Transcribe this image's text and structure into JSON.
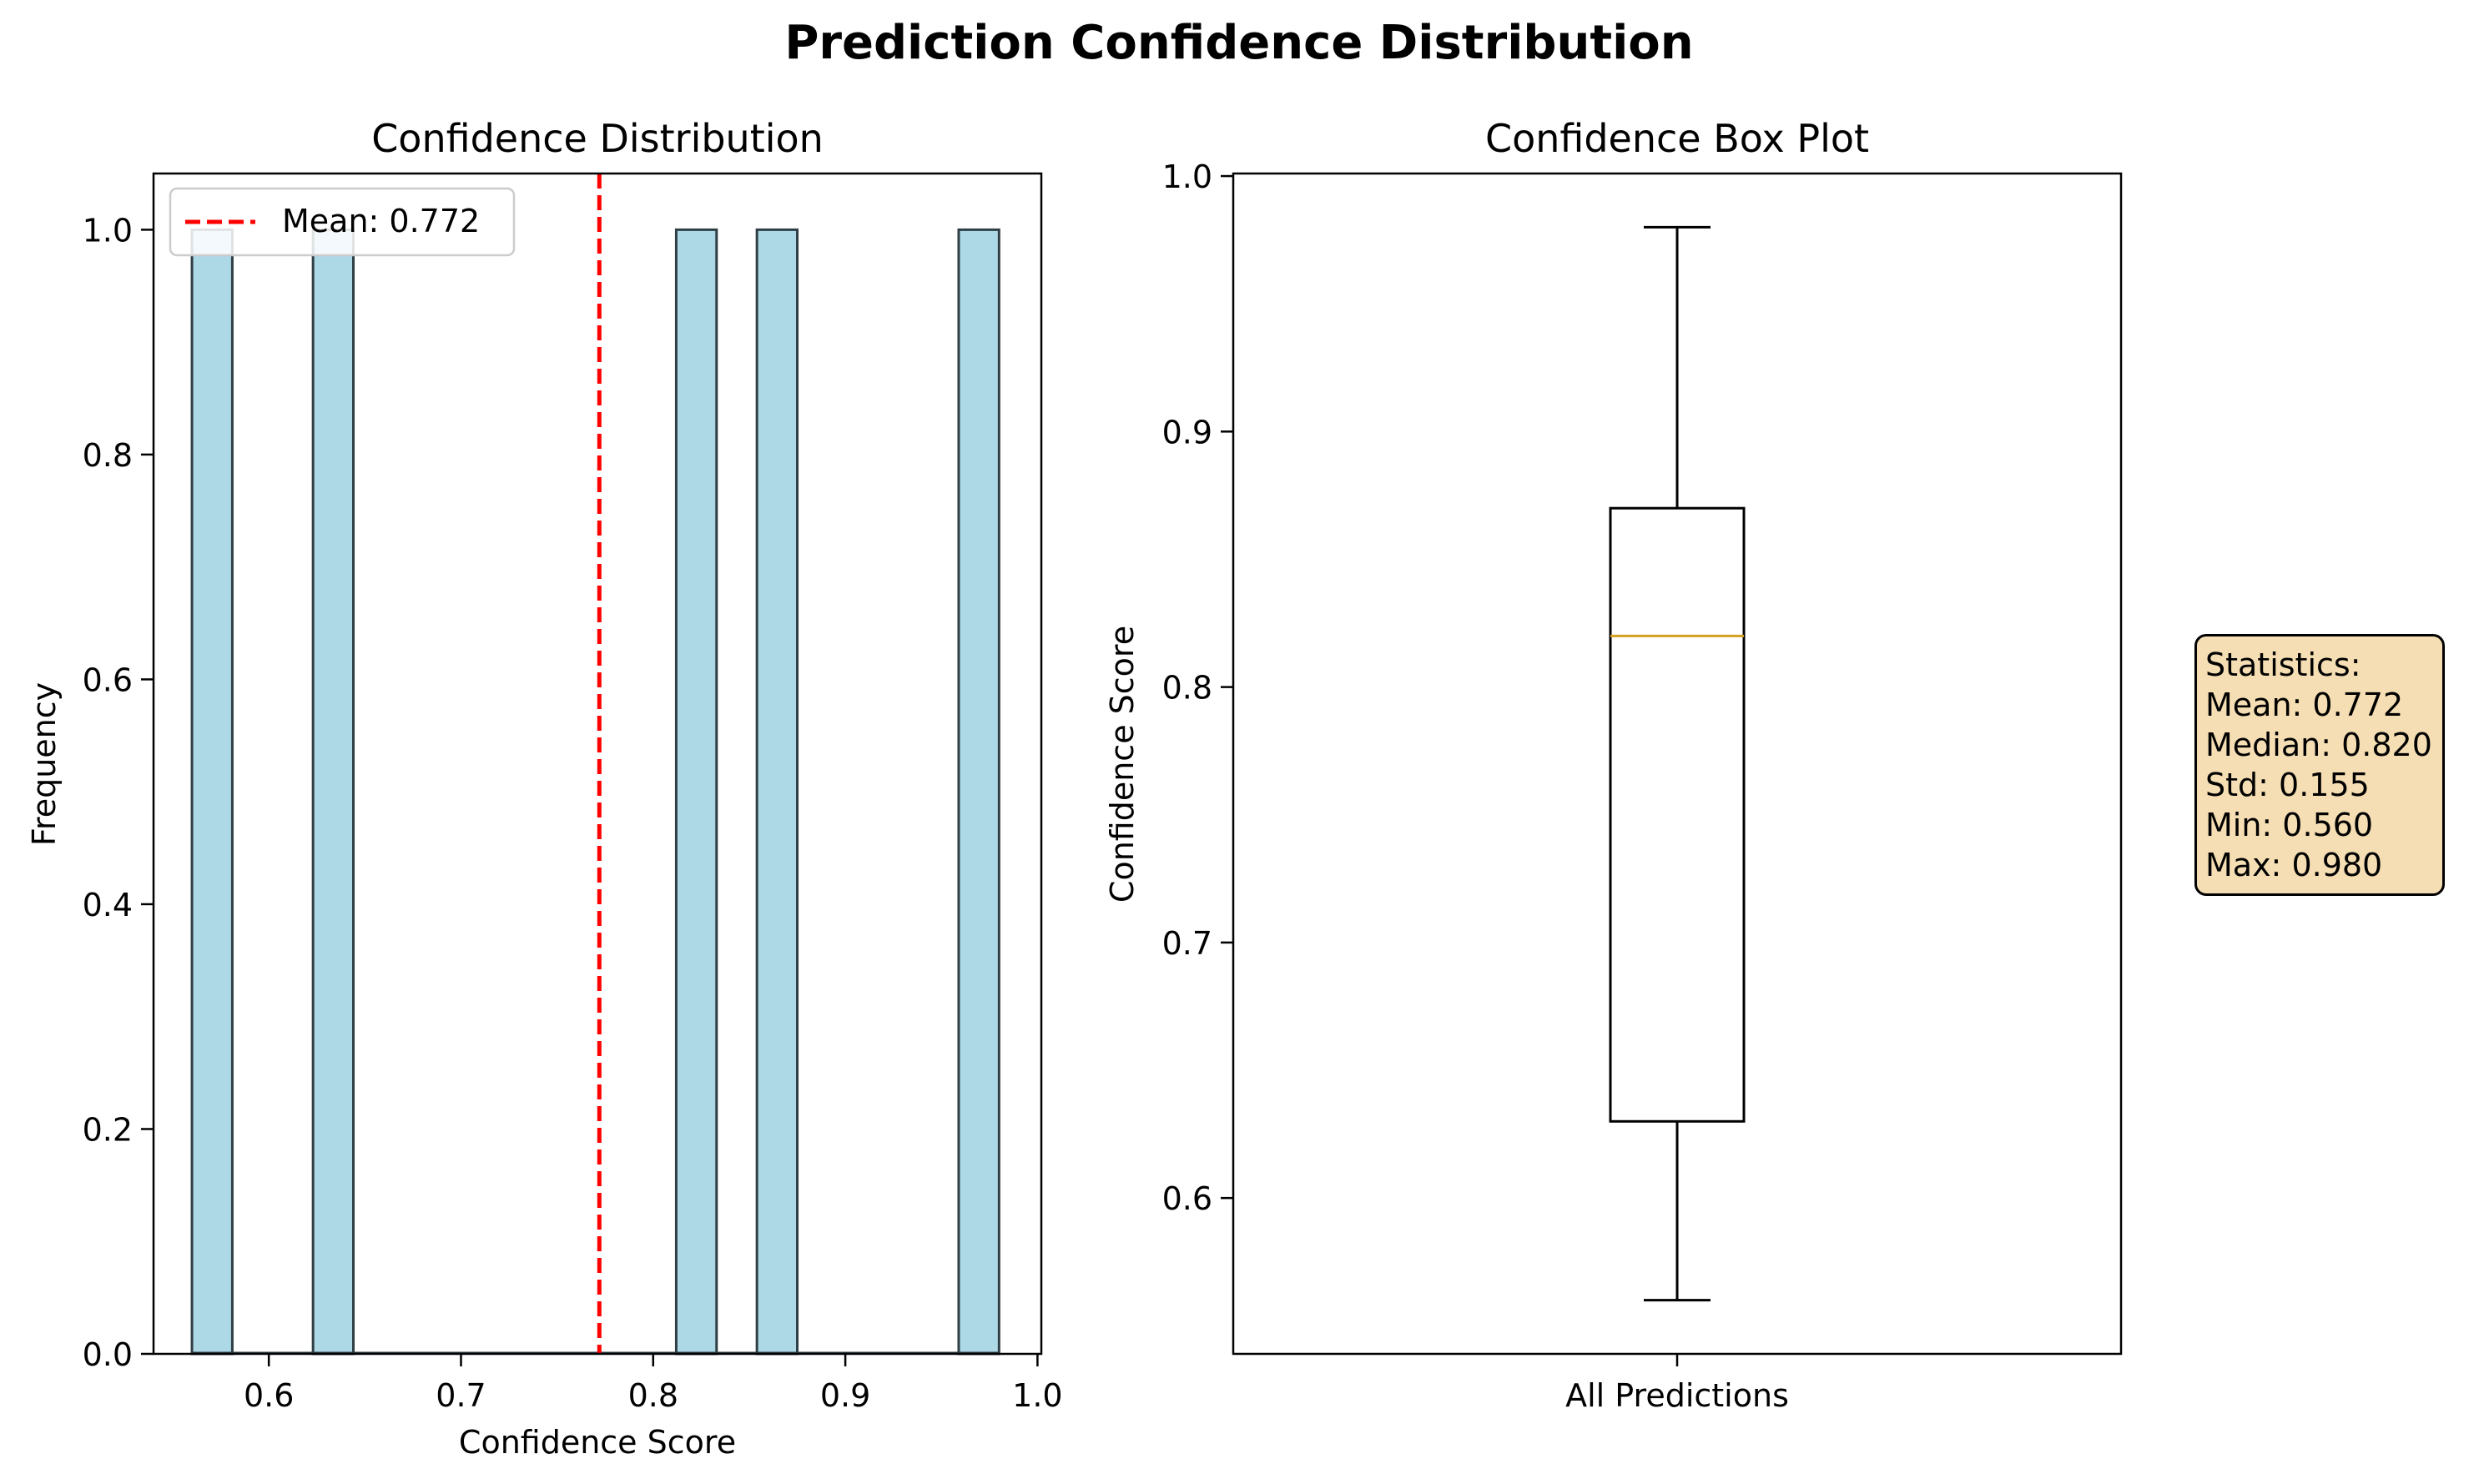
{
  "suptitle": "Prediction Confidence Distribution",
  "chart_data": [
    {
      "type": "bar",
      "title": "Confidence Distribution",
      "xlabel": "Confidence Score",
      "ylabel": "Frequency",
      "xlim": [
        0.54,
        1.002
      ],
      "ylim": [
        0,
        1.05
      ],
      "xticks": [
        "0.6",
        "0.7",
        "0.8",
        "0.9",
        "1.0"
      ],
      "yticks": [
        "0.0",
        "0.2",
        "0.4",
        "0.6",
        "0.8",
        "1.0"
      ],
      "bins": [
        {
          "start": 0.56,
          "end": 0.581,
          "count": 1
        },
        {
          "start": 0.623,
          "end": 0.644,
          "count": 1
        },
        {
          "start": 0.812,
          "end": 0.833,
          "count": 1
        },
        {
          "start": 0.854,
          "end": 0.875,
          "count": 1
        },
        {
          "start": 0.959,
          "end": 0.98,
          "count": 1
        }
      ],
      "bar_color": "#add8e6",
      "bar_edge_color": "#2f3f45",
      "mean_line": {
        "value": 0.772,
        "color": "#ff0000",
        "label": "Mean: 0.772"
      },
      "legend": "top-left"
    },
    {
      "type": "box",
      "title": "Confidence Box Plot",
      "xlabel": "",
      "ylabel": "Confidence Score",
      "ylim": [
        0.539,
        1.001
      ],
      "yticks": [
        "0.6",
        "0.7",
        "0.8",
        "0.9",
        "1.0"
      ],
      "category": "All Predictions",
      "box": {
        "min": 0.56,
        "q1": 0.63,
        "median": 0.82,
        "q3": 0.87,
        "max": 0.98
      },
      "median_color": "#d4a020"
    }
  ],
  "stats_box": {
    "heading": "Statistics:",
    "lines": [
      "Mean: 0.772",
      "Median: 0.820",
      "Std: 0.155",
      "Min: 0.560",
      "Max: 0.980"
    ]
  }
}
